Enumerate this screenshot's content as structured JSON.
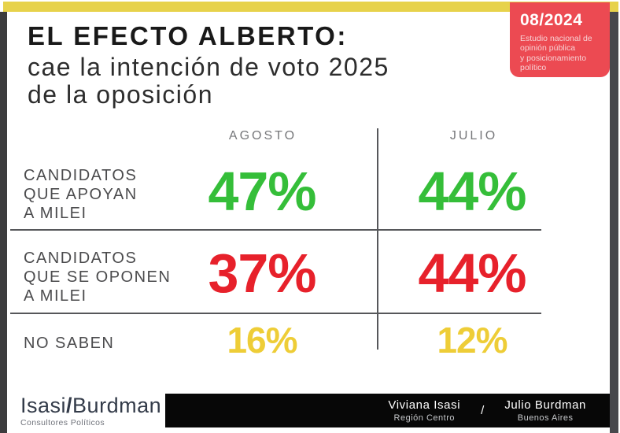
{
  "header": {
    "title": "EL EFECTO ALBERTO:",
    "subtitle": "cae la intención de voto 2025\nde la oposición",
    "badge": {
      "date": "08/2024",
      "description": "Estudio nacional de\nopinión pública\ny posicionamiento\npolítico",
      "bg_color": "#EC4A52"
    },
    "accent_bar_color": "#E7D24B"
  },
  "table": {
    "col_agosto": "AGOSTO",
    "col_julio": "JULIO",
    "rows": [
      {
        "label": "CANDIDATOS\nQUE APOYAN\nA MILEI",
        "agosto": "47%",
        "julio": "44%",
        "color": "#35BE39"
      },
      {
        "label": "CANDIDATOS\nQUE SE OPONEN\nA MILEI",
        "agosto": "37%",
        "julio": "44%",
        "color": "#E7212B"
      },
      {
        "label": "NO SABEN",
        "agosto": "16%",
        "julio": "12%",
        "color": "#EECD37"
      }
    ]
  },
  "footer": {
    "logo_part1": "Isasi",
    "logo_slash": "/",
    "logo_part2": "Burdman",
    "logo_tagline": "Consultores Políticos",
    "credit1_name": "Viviana Isasi",
    "credit1_region": "Región Centro",
    "credits_separator": "/",
    "credit2_name": "Julio Burdman",
    "credit2_region": "Buenos Aires"
  },
  "chart_data": {
    "type": "table",
    "title": "EL EFECTO ALBERTO: cae la intención de voto 2025 de la oposición",
    "categories": [
      "CANDIDATOS QUE APOYAN A MILEI",
      "CANDIDATOS QUE SE OPONEN A MILEI",
      "NO SABEN"
    ],
    "series": [
      {
        "name": "AGOSTO",
        "values": [
          47,
          37,
          16
        ]
      },
      {
        "name": "JULIO",
        "values": [
          44,
          44,
          12
        ]
      }
    ],
    "unit": "%",
    "value_colors": [
      "#35BE39",
      "#E7212B",
      "#EECD37"
    ],
    "period_label": "08/2024"
  }
}
